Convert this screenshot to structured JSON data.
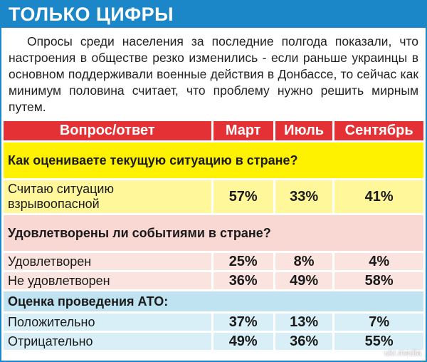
{
  "banner": {
    "title": "ТОЛЬКО ЦИФРЫ"
  },
  "intro": {
    "text": "Опросы среди населения за последние полгода показали, что настроения в обществе резко изменились - если раньше украинцы в основном поддерживали военные действия в Донбассе, то сейчас как минимум половина считает, что проблему нужно решить мирным путем."
  },
  "table": {
    "headers": [
      "Вопрос/ответ",
      "Март",
      "Июль",
      "Сентябрь"
    ],
    "sections": [
      {
        "question": "Как оцениваете текущую ситуацию в стране?",
        "answers": [
          {
            "label": "Считаю ситуацию взрывоопасной",
            "values": [
              "57%",
              "33%",
              "41%"
            ]
          }
        ]
      },
      {
        "question": "Удовлетворены ли событиями в стране?",
        "answers": [
          {
            "label": "Удовлетворен",
            "values": [
              "25%",
              "8%",
              "4%"
            ]
          },
          {
            "label": "Не удовлетворен",
            "values": [
              "36%",
              "49%",
              "58%"
            ]
          }
        ]
      },
      {
        "question": "Оценка проведения АТО:",
        "answers": [
          {
            "label": "Положительно",
            "values": [
              "37%",
              "13%",
              "7%"
            ]
          },
          {
            "label": "Отрицательно",
            "values": [
              "49%",
              "36%",
              "55%"
            ]
          }
        ]
      }
    ]
  },
  "watermark": "ukr.media",
  "colors": {
    "banner": "#1b87c9",
    "header_red": "#e43135",
    "section1_question": "#fff200",
    "section1_answer": "#fff799",
    "section2_question": "#f9d7d2",
    "section2_answer": "#fbe3df",
    "section3_question": "#bfe3f0",
    "section3_answer": "#d9eff7"
  }
}
